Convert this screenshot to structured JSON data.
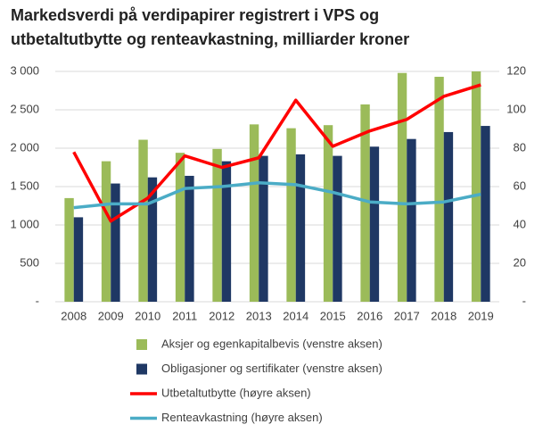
{
  "chart_data": {
    "type": "bar-line",
    "title": [
      "Markedsverdi på verdipapirer registrert i VPS og",
      "utbetaltutbytte og renteavkastning, milliarder kroner"
    ],
    "categories": [
      "2008",
      "2009",
      "2010",
      "2011",
      "2012",
      "2013",
      "2014",
      "2015",
      "2016",
      "2017",
      "2018",
      "2019"
    ],
    "series": [
      {
        "name": "Aksjer og egenkapitalbevis (venstre aksen)",
        "kind": "bar",
        "color": "#9bbb59",
        "values": [
          1350,
          1830,
          2110,
          1940,
          1990,
          2310,
          2260,
          2300,
          2570,
          2980,
          2930,
          3000
        ]
      },
      {
        "name": "Obligasjoner og sertifikater (venstre aksen)",
        "kind": "bar",
        "color": "#1f3864",
        "values": [
          1100,
          1540,
          1620,
          1640,
          1830,
          1900,
          1920,
          1900,
          2020,
          2120,
          2210,
          2290
        ]
      },
      {
        "name": "Utbetaltutbytte (høyre aksen)",
        "kind": "line",
        "axis": "y2",
        "color": "#ff0000",
        "values": [
          78,
          42,
          54,
          76,
          70,
          75,
          105,
          81,
          89,
          95,
          107,
          113
        ]
      },
      {
        "name": "Renteavkastning (høyre aksen)",
        "kind": "line",
        "axis": "y2",
        "color": "#4bacc6",
        "values": [
          49,
          51,
          51,
          59,
          60,
          62,
          61,
          57,
          52,
          51,
          52,
          56
        ]
      }
    ],
    "ylim": [
      0,
      3000
    ],
    "yticks": [
      {
        "value": 0,
        "label": "-"
      },
      500,
      {
        "value": 1000,
        "label": "1 000"
      },
      {
        "value": 1500,
        "label": "1 500"
      },
      {
        "value": 2000,
        "label": "2 000"
      },
      {
        "value": 2500,
        "label": "2 500"
      },
      {
        "value": 3000,
        "label": "3 000"
      }
    ],
    "y2lim": [
      0,
      120
    ],
    "y2ticks": [
      {
        "value": 0,
        "label": "-"
      },
      20,
      40,
      60,
      80,
      100,
      120
    ],
    "grid": true
  }
}
